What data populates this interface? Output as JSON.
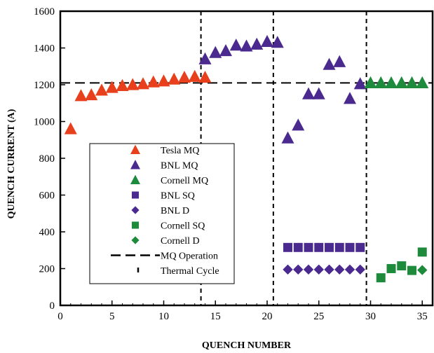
{
  "chart_data": {
    "type": "scatter",
    "xlabel": "QUENCH NUMBER",
    "ylabel": "QUENCH CURRENT (A)",
    "xlim": [
      0,
      36
    ],
    "ylim": [
      0,
      1600
    ],
    "xticks": [
      0,
      5,
      10,
      15,
      20,
      25,
      30,
      35
    ],
    "yticks": [
      0,
      200,
      400,
      600,
      800,
      1000,
      1200,
      1400,
      1600
    ],
    "grid": false,
    "legend_position": "lower-left, inside plot",
    "series": [
      {
        "name": "Tesla MQ",
        "marker": "triangle",
        "color": "#e8401c",
        "points": [
          [
            1,
            960
          ],
          [
            2,
            1140
          ],
          [
            3,
            1145
          ],
          [
            4,
            1170
          ],
          [
            5,
            1185
          ],
          [
            6,
            1195
          ],
          [
            7,
            1200
          ],
          [
            8,
            1205
          ],
          [
            9,
            1215
          ],
          [
            10,
            1220
          ],
          [
            11,
            1230
          ],
          [
            12,
            1240
          ],
          [
            13,
            1245
          ],
          [
            14,
            1240
          ]
        ]
      },
      {
        "name": "BNL MQ",
        "marker": "triangle",
        "color": "#4b2a8f",
        "points": [
          [
            14,
            1340
          ],
          [
            15,
            1375
          ],
          [
            16,
            1385
          ],
          [
            17,
            1415
          ],
          [
            18,
            1410
          ],
          [
            19,
            1420
          ],
          [
            20,
            1435
          ],
          [
            21,
            1430
          ],
          [
            22,
            910
          ],
          [
            23,
            980
          ],
          [
            24,
            1150
          ],
          [
            25,
            1150
          ],
          [
            26,
            1310
          ],
          [
            27,
            1325
          ],
          [
            28,
            1125
          ],
          [
            29,
            1205
          ]
        ]
      },
      {
        "name": "Cornell MQ",
        "marker": "triangle",
        "color": "#1e8a3c",
        "points": [
          [
            30,
            1210
          ],
          [
            31,
            1210
          ],
          [
            32,
            1210
          ],
          [
            33,
            1210
          ],
          [
            34,
            1210
          ],
          [
            35,
            1210
          ]
        ]
      },
      {
        "name": "BNL SQ",
        "marker": "square",
        "color": "#4b2a8f",
        "points": [
          [
            22,
            315
          ],
          [
            23,
            315
          ],
          [
            24,
            315
          ],
          [
            25,
            315
          ],
          [
            26,
            315
          ],
          [
            27,
            315
          ],
          [
            28,
            315
          ],
          [
            29,
            315
          ]
        ]
      },
      {
        "name": "BNL D",
        "marker": "diamond",
        "color": "#4b2a8f",
        "points": [
          [
            22,
            195
          ],
          [
            23,
            195
          ],
          [
            24,
            195
          ],
          [
            25,
            195
          ],
          [
            26,
            195
          ],
          [
            27,
            195
          ],
          [
            28,
            195
          ],
          [
            29,
            195
          ]
        ]
      },
      {
        "name": "Cornell SQ",
        "marker": "square",
        "color": "#1e8a3c",
        "points": [
          [
            31,
            150
          ],
          [
            32,
            200
          ],
          [
            33,
            215
          ],
          [
            34,
            190
          ],
          [
            35,
            290
          ]
        ]
      },
      {
        "name": "Cornell D",
        "marker": "diamond",
        "color": "#1e8a3c",
        "points": [
          [
            35,
            192
          ]
        ]
      }
    ],
    "reference_lines": [
      {
        "name": "MQ Operation",
        "orientation": "horizontal",
        "value": 1210,
        "style": "long-dash"
      },
      {
        "name": "Thermal Cycle",
        "orientation": "vertical",
        "values": [
          13.6,
          20.6,
          29.6
        ],
        "style": "short-dash"
      }
    ]
  }
}
